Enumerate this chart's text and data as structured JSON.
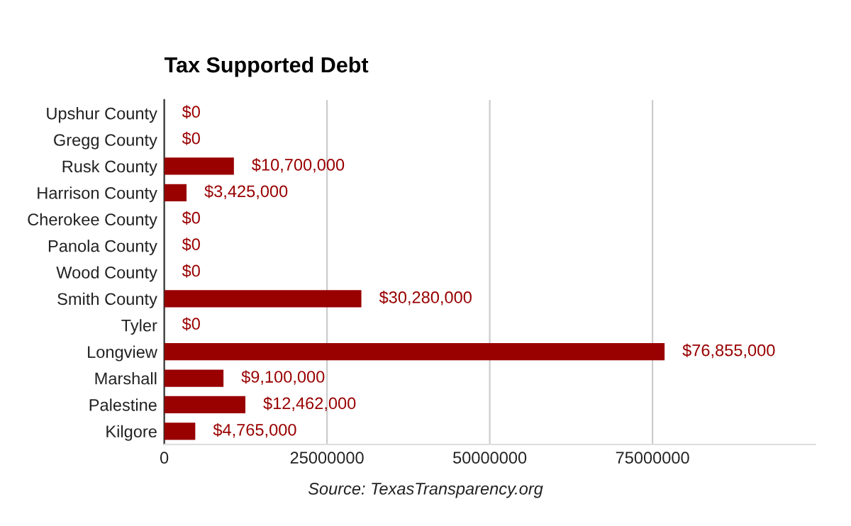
{
  "chart_data": {
    "type": "bar",
    "orientation": "horizontal",
    "title": "Tax Supported Debt",
    "categories": [
      "Upshur County",
      "Gregg County",
      "Rusk County",
      "Harrison County",
      "Cherokee County",
      "Panola County",
      "Wood County",
      "Smith County",
      "Tyler",
      "Longview",
      "Marshall",
      "Palestine",
      "Kilgore"
    ],
    "values": [
      0,
      0,
      10700000,
      3425000,
      0,
      0,
      0,
      30280000,
      0,
      76855000,
      9100000,
      12462000,
      4765000
    ],
    "value_labels": [
      "$0",
      "$0",
      "$10,700,000",
      "$3,425,000",
      "$0",
      "$0",
      "$0",
      "$30,280,000",
      "$0",
      "$76,855,000",
      "$9,100,000",
      "$12,462,000",
      "$4,765,000"
    ],
    "color": "#990000",
    "xlim": [
      0,
      100000000
    ],
    "xticks": [
      0,
      25000000,
      50000000,
      75000000
    ],
    "grid": "x",
    "annotations": [
      "Source: TexasTransparency.org"
    ]
  }
}
